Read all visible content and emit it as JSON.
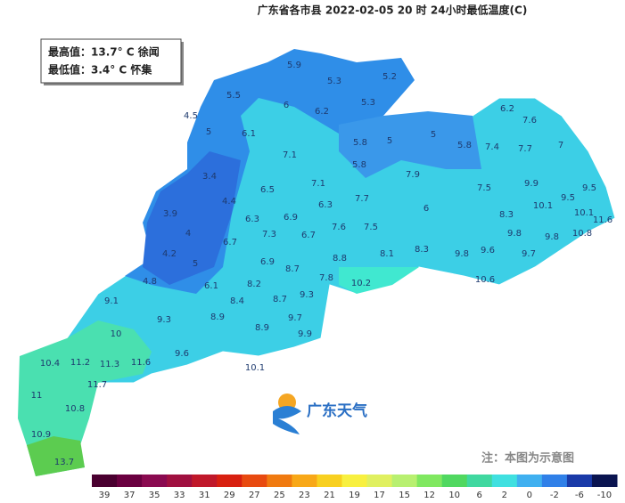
{
  "title": "广东省各市县 2022-02-05 20 时 24小时最低温度(C)",
  "info_box": {
    "max_line": "最高值：13.7° C 徐闻",
    "min_line": "最低值：3.4° C 怀集"
  },
  "stations": [
    5.9,
    5.3,
    5.2,
    5.5,
    4.5,
    6,
    6.2,
    5.3,
    6.2,
    7.6,
    5,
    6.1,
    5.8,
    5,
    5,
    5.8,
    7.4,
    7.7,
    7,
    7.1,
    5.8,
    3.4,
    7.9,
    7.1,
    6.5,
    7.5,
    9.9,
    9.5,
    4.4,
    6.3,
    7.7,
    9.5,
    10.1,
    6,
    3.9,
    6.3,
    6.9,
    8.3,
    10.1,
    11.6,
    4,
    7.3,
    6.7,
    7.6,
    7.5,
    9.8,
    9.8,
    10.8,
    6.7,
    8.3,
    4.2,
    8.1,
    9.6,
    9.7,
    5,
    6.9,
    8.8,
    9.8,
    8.7,
    4.8,
    7.8,
    10.2,
    10.6,
    6.1,
    8.2,
    9.1,
    8.4,
    8.7,
    9.3,
    9.3,
    8.9,
    9.7,
    8.9,
    9.9,
    10,
    9.6,
    10.4,
    11.2,
    11.3,
    11.6,
    10.1,
    11.7,
    11,
    10.8,
    10.9,
    13.7
  ],
  "logo": "广东天气",
  "note": "注：本图为示意图",
  "legend": {
    "labels": [
      39,
      37,
      35,
      33,
      31,
      29,
      27,
      25,
      23,
      21,
      19,
      17,
      15,
      12,
      10,
      6,
      2,
      0,
      -2,
      -6,
      -10
    ],
    "colors": [
      "#4a0030",
      "#6a0040",
      "#8a0a50",
      "#a01040",
      "#c0182a",
      "#d82010",
      "#e84a10",
      "#f07a10",
      "#f8a818",
      "#f8d020",
      "#f8f040",
      "#e0f060",
      "#b8f070",
      "#80e860",
      "#50d860",
      "#40d8a0",
      "#40e0e0",
      "#40b0f0",
      "#3080e8",
      "#1a3aa8",
      "#0a1450"
    ]
  }
}
